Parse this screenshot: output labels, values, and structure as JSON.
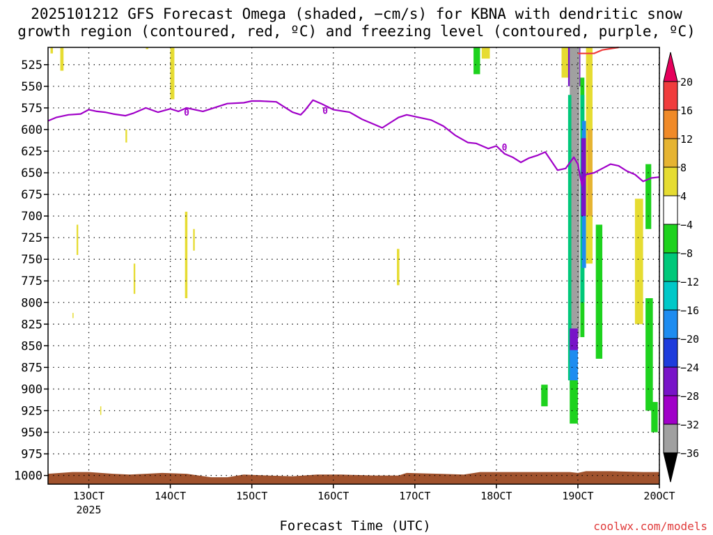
{
  "title_line1": "2025101212 GFS Forecast Omega (shaded, −cm/s) for KBNA with dendritic snow",
  "title_line2": "growth region (contoured, red, ºC) and freezing level (contoured, purple, ºC)",
  "credit": "coolwx.com/models",
  "chart_data": {
    "type": "heatmap",
    "xlabel": "Forecast Time (UTC)",
    "x_ticks": [
      "13OCT",
      "14OCT",
      "15OCT",
      "16OCT",
      "17OCT",
      "18OCT",
      "19OCT",
      "20OCT"
    ],
    "x_year_label": "2025",
    "y_ticks": [
      525,
      550,
      575,
      600,
      625,
      650,
      675,
      700,
      725,
      750,
      775,
      800,
      825,
      850,
      875,
      900,
      925,
      950,
      975,
      1000
    ],
    "ylim": [
      1010,
      505
    ],
    "xlim_days": [
      12.5,
      20.0
    ],
    "colorbar": {
      "levels": [
        20,
        16,
        12,
        8,
        4,
        -4,
        -8,
        -12,
        -16,
        -20,
        -24,
        -28,
        -32,
        -36
      ],
      "colors": [
        "#e6005c",
        "#f03c3c",
        "#f08a28",
        "#e6b432",
        "#e6dc32",
        "#ffffff",
        "#1ed21e",
        "#00c87a",
        "#00c8c8",
        "#1e8cf0",
        "#1e3cdc",
        "#7814c8",
        "#a000c8",
        "#a0a0a0",
        "#000000"
      ]
    },
    "freezing_level": {
      "label": "0",
      "color": "#a000c8",
      "points": [
        [
          12.5,
          590
        ],
        [
          12.6,
          586
        ],
        [
          12.75,
          583
        ],
        [
          12.9,
          582
        ],
        [
          13.0,
          577
        ],
        [
          13.1,
          579
        ],
        [
          13.2,
          580
        ],
        [
          13.3,
          582
        ],
        [
          13.45,
          584
        ],
        [
          13.55,
          581
        ],
        [
          13.7,
          575
        ],
        [
          13.85,
          580
        ],
        [
          14.0,
          576
        ],
        [
          14.1,
          579
        ],
        [
          14.2,
          575
        ],
        [
          14.4,
          579
        ],
        [
          14.5,
          576
        ],
        [
          14.7,
          570
        ],
        [
          14.9,
          569
        ],
        [
          15.0,
          567
        ],
        [
          15.1,
          567
        ],
        [
          15.3,
          568
        ],
        [
          15.4,
          574
        ],
        [
          15.5,
          580
        ],
        [
          15.6,
          583
        ],
        [
          15.65,
          578
        ],
        [
          15.75,
          566
        ],
        [
          15.85,
          570
        ],
        [
          16.0,
          577
        ],
        [
          16.2,
          580
        ],
        [
          16.35,
          588
        ],
        [
          16.5,
          594
        ],
        [
          16.6,
          598
        ],
        [
          16.7,
          592
        ],
        [
          16.8,
          586
        ],
        [
          16.9,
          583
        ],
        [
          17.0,
          585
        ],
        [
          17.2,
          589
        ],
        [
          17.35,
          596
        ],
        [
          17.5,
          607
        ],
        [
          17.65,
          615
        ],
        [
          17.75,
          616
        ],
        [
          17.9,
          622
        ],
        [
          18.0,
          619
        ],
        [
          18.1,
          628
        ],
        [
          18.2,
          632
        ],
        [
          18.3,
          638
        ],
        [
          18.4,
          633
        ],
        [
          18.5,
          630
        ],
        [
          18.6,
          626
        ],
        [
          18.75,
          647
        ],
        [
          18.85,
          645
        ],
        [
          18.95,
          632
        ],
        [
          19.0,
          640
        ],
        [
          19.05,
          665
        ],
        [
          19.1,
          652
        ],
        [
          19.2,
          650
        ],
        [
          19.3,
          645
        ],
        [
          19.4,
          640
        ],
        [
          19.5,
          642
        ],
        [
          19.6,
          648
        ],
        [
          19.7,
          652
        ],
        [
          19.8,
          660
        ],
        [
          19.9,
          656
        ],
        [
          20.0,
          655
        ]
      ]
    },
    "dendritic_contour": {
      "color": "#f03c3c",
      "points": [
        [
          19.0,
          512
        ],
        [
          19.2,
          512
        ],
        [
          19.3,
          508
        ],
        [
          19.5,
          505
        ]
      ]
    },
    "shaded_regions": [
      {
        "t0": 12.53,
        "t1": 12.56,
        "p0": 505,
        "p1": 512,
        "value": 4
      },
      {
        "t0": 12.65,
        "t1": 12.69,
        "p0": 505,
        "p1": 532,
        "value": 4
      },
      {
        "t0": 13.7,
        "t1": 13.73,
        "p0": 505,
        "p1": 507,
        "value": 4
      },
      {
        "t0": 14.0,
        "t1": 14.05,
        "p0": 505,
        "p1": 565,
        "value": 4
      },
      {
        "t0": 13.45,
        "t1": 13.47,
        "p0": 600,
        "p1": 615,
        "value": 4
      },
      {
        "t0": 12.85,
        "t1": 12.87,
        "p0": 710,
        "p1": 745,
        "value": 4
      },
      {
        "t0": 12.8,
        "t1": 12.81,
        "p0": 812,
        "p1": 818,
        "value": 4
      },
      {
        "t0": 13.14,
        "t1": 13.15,
        "p0": 920,
        "p1": 930,
        "value": 4
      },
      {
        "t0": 13.55,
        "t1": 13.57,
        "p0": 755,
        "p1": 790,
        "value": 4
      },
      {
        "t0": 14.18,
        "t1": 14.21,
        "p0": 695,
        "p1": 795,
        "value": 4
      },
      {
        "t0": 14.28,
        "t1": 14.3,
        "p0": 715,
        "p1": 740,
        "value": 4
      },
      {
        "t0": 16.78,
        "t1": 16.81,
        "p0": 738,
        "p1": 780,
        "value": 4
      },
      {
        "t0": 17.82,
        "t1": 17.92,
        "p0": 505,
        "p1": 518,
        "value": 4
      },
      {
        "t0": 17.72,
        "t1": 17.8,
        "p0": 505,
        "p1": 536,
        "value": -8
      },
      {
        "t0": 18.8,
        "t1": 18.9,
        "p0": 505,
        "p1": 540,
        "value": 4
      },
      {
        "t0": 18.88,
        "t1": 19.03,
        "p0": 505,
        "p1": 550,
        "value": -28
      },
      {
        "t0": 18.9,
        "t1": 19.02,
        "p0": 505,
        "p1": 840,
        "value": -36
      },
      {
        "t0": 18.88,
        "t1": 18.92,
        "p0": 560,
        "p1": 890,
        "value": -12
      },
      {
        "t0": 18.9,
        "t1": 19.0,
        "p0": 830,
        "p1": 870,
        "value": -28
      },
      {
        "t0": 18.9,
        "t1": 19.0,
        "p0": 855,
        "p1": 900,
        "value": -20
      },
      {
        "t0": 18.9,
        "t1": 19.0,
        "p0": 890,
        "p1": 940,
        "value": -8
      },
      {
        "t0": 19.03,
        "t1": 19.08,
        "p0": 540,
        "p1": 840,
        "value": -8
      },
      {
        "t0": 19.03,
        "t1": 19.08,
        "p0": 560,
        "p1": 800,
        "value": -12
      },
      {
        "t0": 19.05,
        "t1": 19.1,
        "p0": 590,
        "p1": 760,
        "value": -20
      },
      {
        "t0": 19.04,
        "t1": 19.1,
        "p0": 610,
        "p1": 700,
        "value": -28
      },
      {
        "t0": 19.1,
        "t1": 19.18,
        "p0": 505,
        "p1": 755,
        "value": 4
      },
      {
        "t0": 19.12,
        "t1": 19.18,
        "p0": 600,
        "p1": 700,
        "value": 8
      },
      {
        "t0": 19.22,
        "t1": 19.3,
        "p0": 710,
        "p1": 865,
        "value": -8
      },
      {
        "t0": 19.7,
        "t1": 19.8,
        "p0": 680,
        "p1": 825,
        "value": 4
      },
      {
        "t0": 19.83,
        "t1": 19.9,
        "p0": 640,
        "p1": 715,
        "value": -8
      },
      {
        "t0": 19.83,
        "t1": 19.92,
        "p0": 795,
        "p1": 925,
        "value": -8
      },
      {
        "t0": 19.9,
        "t1": 19.98,
        "p0": 915,
        "p1": 950,
        "value": -8
      },
      {
        "t0": 18.55,
        "t1": 18.63,
        "p0": 895,
        "p1": 920,
        "value": -8
      }
    ],
    "terrain": {
      "color": "#a0522d",
      "surface_pressure": [
        [
          12.5,
          998
        ],
        [
          12.8,
          996
        ],
        [
          13.0,
          996
        ],
        [
          13.3,
          998
        ],
        [
          13.5,
          999
        ],
        [
          13.7,
          998
        ],
        [
          13.9,
          997
        ],
        [
          14.2,
          998
        ],
        [
          14.5,
          1002
        ],
        [
          14.7,
          1002
        ],
        [
          14.9,
          999
        ],
        [
          15.2,
          1000
        ],
        [
          15.5,
          1001
        ],
        [
          15.8,
          999
        ],
        [
          16.1,
          999
        ],
        [
          16.5,
          1000
        ],
        [
          16.8,
          1000
        ],
        [
          16.9,
          997
        ],
        [
          17.3,
          998
        ],
        [
          17.6,
          999
        ],
        [
          17.8,
          996
        ],
        [
          18.1,
          996
        ],
        [
          18.5,
          996
        ],
        [
          18.9,
          996
        ],
        [
          19.0,
          997
        ],
        [
          19.1,
          995
        ],
        [
          19.4,
          995
        ],
        [
          19.8,
          996
        ],
        [
          20.0,
          996
        ]
      ]
    }
  }
}
